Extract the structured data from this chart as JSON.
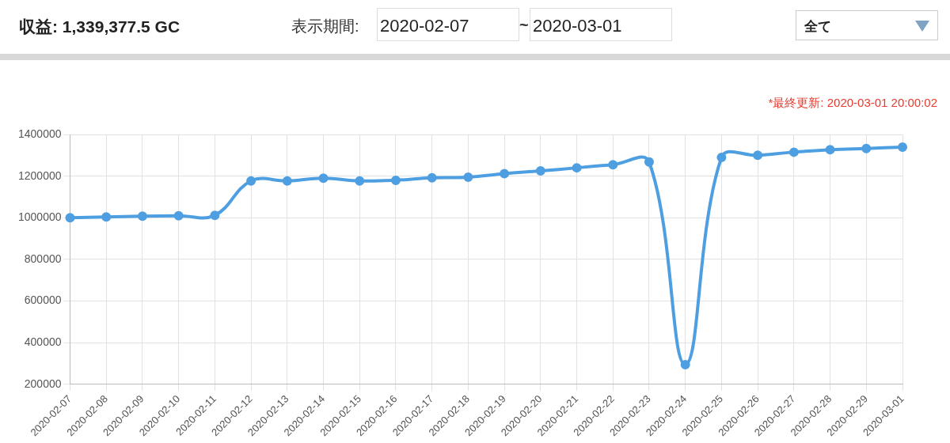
{
  "chart_data": {
    "type": "line",
    "title": "収益: 1,339,377.5 GC",
    "annotations": [
      "表示期間:",
      "2020-02-07",
      "~",
      "2020-03-01",
      "全て",
      "*最終更新: 2020-03-01 20:00:02"
    ],
    "categories": [
      "2020-02-07",
      "2020-02-08",
      "2020-02-09",
      "2020-02-10",
      "2020-02-11",
      "2020-02-12",
      "2020-02-13",
      "2020-02-14",
      "2020-02-15",
      "2020-02-16",
      "2020-02-17",
      "2020-02-18",
      "2020-02-19",
      "2020-02-20",
      "2020-02-21",
      "2020-02-22",
      "2020-02-23",
      "2020-02-24",
      "2020-02-25",
      "2020-02-26",
      "2020-02-27",
      "2020-02-28",
      "2020-02-29",
      "2020-03-01"
    ],
    "series": [
      {
        "color": "#4e9fe1",
        "values": [
          1000000,
          1004000,
          1008000,
          1010000,
          1012000,
          1177000,
          1177000,
          1190000,
          1177000,
          1180000,
          1192000,
          1195000,
          1212000,
          1225000,
          1240000,
          1255000,
          1268000,
          295000,
          1290000,
          1300000,
          1315000,
          1327000,
          1333000,
          1339000
        ]
      }
    ],
    "ylim": [
      200000,
      1400000
    ],
    "yticks": [
      200000,
      400000,
      600000,
      800000,
      1000000,
      1200000,
      1400000
    ],
    "grid": true,
    "legend": false,
    "marker": "circle",
    "line_style": "solid"
  }
}
